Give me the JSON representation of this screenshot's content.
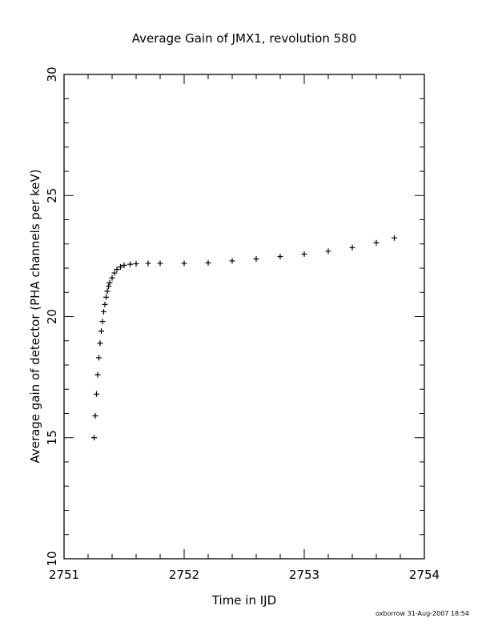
{
  "chart_data": {
    "type": "scatter",
    "title": "Average Gain of JMX1, revolution 580",
    "xlabel": "Time in IJD",
    "ylabel": "Average gain of detector (PHA channels per keV)",
    "xlim": [
      2751,
      2754
    ],
    "ylim": [
      10,
      30
    ],
    "x_ticks": [
      "2751",
      "2752",
      "2753",
      "2754"
    ],
    "y_ticks": [
      "10",
      "15",
      "20",
      "25",
      "30"
    ],
    "grid": false,
    "marker": "plus",
    "series": [
      {
        "color": "#000000",
        "x": [
          2751.25,
          2751.26,
          2751.27,
          2751.28,
          2751.29,
          2751.3,
          2751.31,
          2751.32,
          2751.33,
          2751.34,
          2751.35,
          2751.36,
          2751.37,
          2751.38,
          2751.4,
          2751.42,
          2751.44,
          2751.47,
          2751.5,
          2751.55,
          2751.6,
          2751.7,
          2751.8,
          2752.0,
          2752.2,
          2752.4,
          2752.6,
          2752.8,
          2753.0,
          2753.2,
          2753.4,
          2753.6,
          2753.75
        ],
        "y": [
          15.0,
          15.9,
          16.8,
          17.6,
          18.3,
          18.9,
          19.4,
          19.8,
          20.2,
          20.5,
          20.8,
          21.05,
          21.25,
          21.4,
          21.6,
          21.8,
          21.95,
          22.05,
          22.12,
          22.16,
          22.18,
          22.2,
          22.2,
          22.2,
          22.22,
          22.3,
          22.38,
          22.48,
          22.58,
          22.7,
          22.85,
          23.05,
          23.25
        ]
      }
    ]
  },
  "footer": {
    "stamp": "oxborrow 31-Aug-2007 18:54"
  }
}
